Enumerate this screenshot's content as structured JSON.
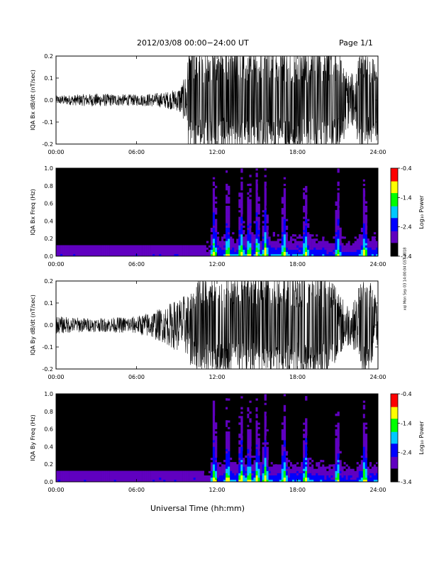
{
  "header": {
    "date_range": "2012/03/08   00:00−24:00 UT",
    "page": "Page 1/1"
  },
  "footer": {
    "xlabel": "Universal Time (hh:mm)",
    "stamp": "xqi Mon Sep 03 14:00:04 GST 2018"
  },
  "colorbar": {
    "label": "Log₁₀ Power",
    "ticks": [
      "-0.4",
      "-1.4",
      "-2.4",
      "-3.4"
    ],
    "colors": [
      "#ff0000",
      "#ffff00",
      "#00ff00",
      "#00c8ff",
      "#0000ff",
      "#6000c0",
      "#000000"
    ]
  },
  "chart_data": [
    {
      "type": "line",
      "ylabel": "IQA Bx dB/dt (nT/sec)",
      "xlim": [
        "00:00",
        "24:00"
      ],
      "ylim": [
        -0.2,
        0.2
      ],
      "x_ticks": [
        "00:00",
        "06:00",
        "12:00",
        "18:00",
        "24:00"
      ],
      "y_ticks": [
        "-0.2",
        "-0.1",
        "0.0",
        "0.1",
        "0.2"
      ],
      "envelope": {
        "x_hours": [
          0,
          3,
          6,
          8,
          9,
          9.5,
          10,
          11,
          12,
          14,
          16,
          18,
          20,
          21,
          22,
          23,
          24
        ],
        "amplitude": [
          0.02,
          0.03,
          0.025,
          0.035,
          0.05,
          0.09,
          0.2,
          0.2,
          0.2,
          0.2,
          0.2,
          0.2,
          0.2,
          0.18,
          0.12,
          0.2,
          0.15
        ]
      }
    },
    {
      "type": "heatmap",
      "ylabel": "IQA Bx Freq (Hz)",
      "xlim": [
        "00:00",
        "24:00"
      ],
      "ylim": [
        0.0,
        1.0
      ],
      "x_ticks": [
        "00:00",
        "06:00",
        "12:00",
        "18:00",
        "24:00"
      ],
      "y_ticks": [
        "0.0",
        "0.2",
        "0.4",
        "0.6",
        "0.8",
        "1.0"
      ],
      "colorbar_range": [
        -3.4,
        -0.4
      ],
      "bright_bands_hours": [
        11.8,
        12.8,
        13.8,
        14.4,
        15.0,
        15.6,
        17.0,
        18.6,
        21.0,
        23.0
      ]
    },
    {
      "type": "line",
      "ylabel": "IQA By dB/dt (nT/sec)",
      "xlim": [
        "00:00",
        "24:00"
      ],
      "ylim": [
        -0.2,
        0.2
      ],
      "x_ticks": [
        "00:00",
        "06:00",
        "12:00",
        "18:00",
        "24:00"
      ],
      "y_ticks": [
        "-0.2",
        "-0.1",
        "0.0",
        "0.1",
        "0.2"
      ],
      "envelope": {
        "x_hours": [
          0,
          3,
          6,
          7,
          8,
          9,
          10,
          11,
          12,
          14,
          16,
          18,
          20,
          21,
          22,
          23,
          24
        ],
        "amplitude": [
          0.04,
          0.03,
          0.04,
          0.06,
          0.08,
          0.12,
          0.15,
          0.2,
          0.2,
          0.2,
          0.2,
          0.2,
          0.2,
          0.15,
          0.09,
          0.2,
          0.12
        ]
      }
    },
    {
      "type": "heatmap",
      "ylabel": "IQA By Freq (Hz)",
      "xlim": [
        "00:00",
        "24:00"
      ],
      "ylim": [
        0.0,
        1.0
      ],
      "x_ticks": [
        "00:00",
        "06:00",
        "12:00",
        "18:00",
        "24:00"
      ],
      "y_ticks": [
        "0.0",
        "0.2",
        "0.4",
        "0.6",
        "0.8",
        "1.0"
      ],
      "colorbar_range": [
        -3.4,
        -0.4
      ],
      "bright_bands_hours": [
        11.8,
        12.8,
        13.8,
        14.4,
        15.0,
        15.6,
        17.0,
        18.6,
        21.0,
        23.0
      ]
    }
  ]
}
